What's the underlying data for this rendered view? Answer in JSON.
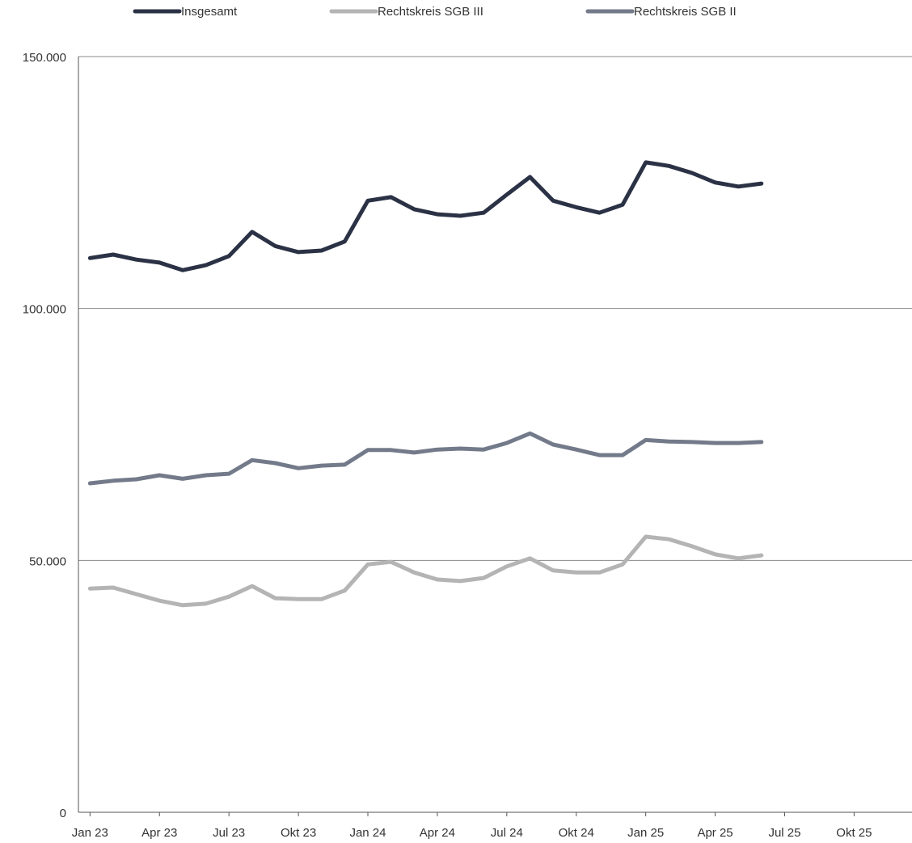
{
  "chart_data": {
    "type": "line",
    "categories": [
      "Jan 23",
      null,
      null,
      "Apr 23",
      null,
      null,
      "Jul 23",
      null,
      null,
      "Okt 23",
      null,
      null,
      "Jan 24",
      null,
      null,
      "Apr 24",
      null,
      null,
      "Jul 24",
      null,
      null,
      "Okt 24",
      null,
      null,
      "Jan 25",
      null,
      null,
      "Apr 25",
      null,
      null,
      "Jul 25",
      null,
      null,
      "Okt 25",
      null,
      null
    ],
    "series": [
      {
        "name": "Insgesamt",
        "color": "#2b3245",
        "values": [
          110000,
          110700,
          109700,
          109100,
          107600,
          108600,
          110400,
          115200,
          112400,
          111200,
          111500,
          113300,
          121400,
          122100,
          119700,
          118700,
          118400,
          119000,
          122600,
          126100,
          121400,
          120100,
          119000,
          120600,
          129000,
          128300,
          126900,
          125000,
          124200,
          124800,
          null,
          null,
          null,
          null,
          null,
          null
        ]
      },
      {
        "name": "Rechtskreis SGB III",
        "color": "#b4b4b4",
        "values": [
          44400,
          44600,
          43300,
          42000,
          41100,
          41400,
          42800,
          44900,
          42500,
          42300,
          42300,
          44000,
          49200,
          49700,
          47600,
          46200,
          45900,
          46500,
          48800,
          50400,
          48000,
          47600,
          47600,
          49200,
          54700,
          54200,
          52800,
          51200,
          50400,
          51000,
          null,
          null,
          null,
          null,
          null,
          null
        ]
      },
      {
        "name": "Rechtskreis SGB II",
        "color": "#737a8a",
        "values": [
          65300,
          65800,
          66100,
          66900,
          66200,
          66900,
          67200,
          69900,
          69300,
          68300,
          68800,
          69000,
          71900,
          71900,
          71400,
          72000,
          72200,
          72000,
          73300,
          75200,
          73000,
          72000,
          70900,
          70900,
          73900,
          73600,
          73500,
          73300,
          73300,
          73500,
          null,
          null,
          null,
          null,
          null,
          null
        ]
      }
    ],
    "ylim": [
      0,
      150000
    ],
    "yticks": [
      0,
      {
        "value": 50000,
        "label": "50.000"
      },
      {
        "value": 100000,
        "label": "100.000"
      },
      {
        "value": 150000,
        "label": "150.000"
      }
    ],
    "grid": true,
    "legend": "top"
  }
}
